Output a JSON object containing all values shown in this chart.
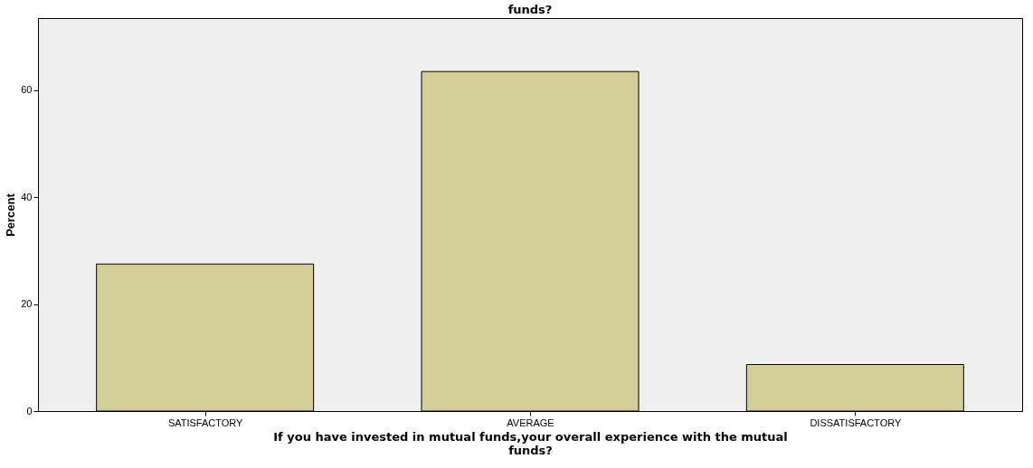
{
  "chart_data": {
    "type": "bar",
    "title": "funds?",
    "xlabel": "If you have invested in mutual funds,your overall experience with the mutual funds?",
    "ylabel": "Percent",
    "categories": [
      "SATISFACTORY",
      "AVERAGE",
      "DISSATISFACTORY"
    ],
    "values": [
      27.5,
      63.5,
      8.7
    ],
    "color": "#d3cf98",
    "ylim": [
      0,
      73.5
    ],
    "yticks": [
      0,
      20,
      40,
      60
    ],
    "grid": false
  }
}
